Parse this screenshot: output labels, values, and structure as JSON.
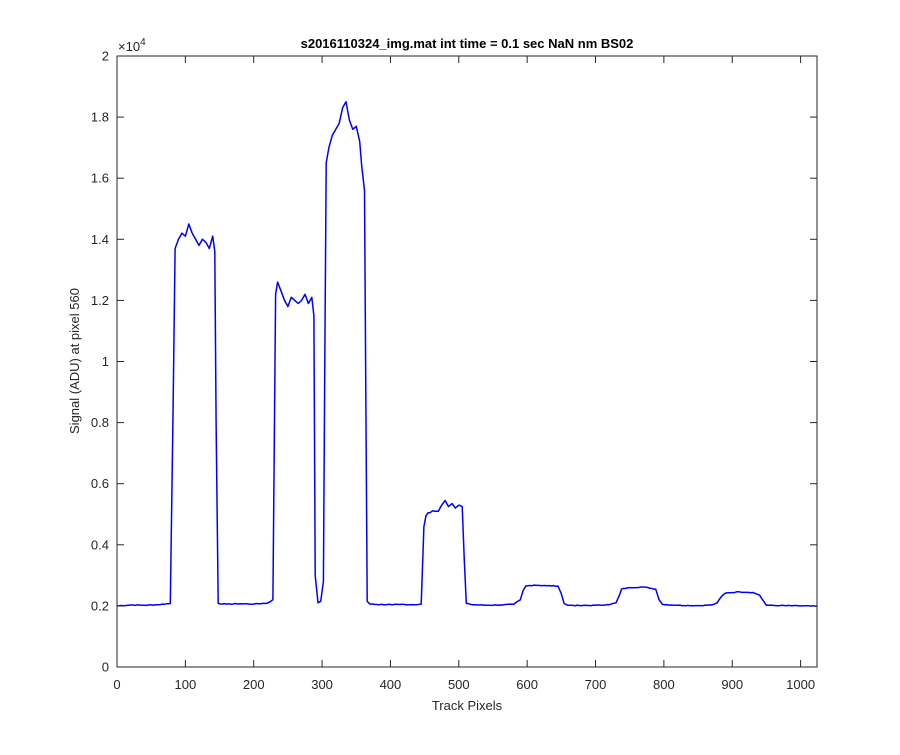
{
  "chart_data": {
    "type": "line",
    "title": "s2016110324_img.mat int time = 0.1 sec  NaN nm BS02",
    "xlabel": "Track Pixels",
    "ylabel": "Signal (ADU) at pixel 560",
    "xlim": [
      0,
      1024
    ],
    "ylim": [
      0,
      20000
    ],
    "y_exponent_label": "×10",
    "y_exponent_power": "4",
    "x_ticks": [
      0,
      100,
      200,
      300,
      400,
      500,
      600,
      700,
      800,
      900,
      1000
    ],
    "x_tick_labels": [
      "0",
      "100",
      "200",
      "300",
      "400",
      "500",
      "600",
      "700",
      "800",
      "900",
      "1000"
    ],
    "y_ticks": [
      0,
      2000,
      4000,
      6000,
      8000,
      10000,
      12000,
      14000,
      16000,
      18000,
      20000
    ],
    "y_tick_labels": [
      "0",
      "0.2",
      "0.4",
      "0.6",
      "0.8",
      "1",
      "1.2",
      "1.4",
      "1.6",
      "1.8",
      "2"
    ],
    "grid": false,
    "box": true,
    "series": [
      {
        "color": "#0000ff",
        "x": [
          0,
          20,
          40,
          60,
          78,
          82,
          85,
          90,
          95,
          100,
          105,
          110,
          115,
          120,
          125,
          130,
          135,
          140,
          143,
          145,
          148,
          160,
          180,
          200,
          220,
          228,
          232,
          235,
          240,
          245,
          250,
          255,
          260,
          265,
          270,
          275,
          280,
          285,
          288,
          290,
          294,
          298,
          302,
          304,
          306,
          310,
          315,
          320,
          325,
          330,
          335,
          340,
          345,
          350,
          355,
          358,
          362,
          364,
          366,
          370,
          390,
          410,
          430,
          445,
          449,
          452,
          458,
          465,
          470,
          475,
          480,
          485,
          490,
          495,
          500,
          505,
          508,
          511,
          520,
          540,
          560,
          580,
          590,
          594,
          598,
          610,
          630,
          645,
          650,
          654,
          660,
          680,
          700,
          720,
          730,
          735,
          738,
          750,
          770,
          788,
          793,
          798,
          820,
          850,
          870,
          878,
          884,
          890,
          910,
          930,
          940,
          946,
          950,
          970,
          1000,
          1024
        ],
        "values": [
          2000,
          2030,
          2020,
          2040,
          2080,
          8500,
          13700,
          14000,
          14200,
          14100,
          14500,
          14200,
          14000,
          13800,
          14000,
          13900,
          13700,
          14100,
          13600,
          8000,
          2080,
          2060,
          2070,
          2060,
          2090,
          2200,
          12200,
          12600,
          12300,
          12000,
          11800,
          12100,
          12000,
          11900,
          12000,
          12200,
          11900,
          12100,
          11500,
          3000,
          2100,
          2150,
          2800,
          10000,
          16500,
          17000,
          17400,
          17600,
          17800,
          18300,
          18500,
          17900,
          17600,
          17700,
          17200,
          16400,
          15600,
          9000,
          2150,
          2060,
          2040,
          2050,
          2040,
          2060,
          4600,
          4950,
          5050,
          5100,
          5100,
          5300,
          5450,
          5250,
          5350,
          5200,
          5300,
          5250,
          3500,
          2080,
          2040,
          2020,
          2030,
          2050,
          2200,
          2500,
          2650,
          2680,
          2660,
          2650,
          2400,
          2080,
          2020,
          2010,
          2020,
          2040,
          2100,
          2350,
          2550,
          2600,
          2620,
          2550,
          2200,
          2050,
          2020,
          2010,
          2030,
          2100,
          2300,
          2420,
          2460,
          2440,
          2350,
          2150,
          2020,
          2010,
          2000,
          1990
        ]
      }
    ]
  }
}
